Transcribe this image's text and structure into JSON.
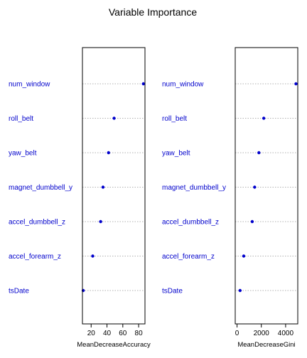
{
  "chart_data": {
    "type": "scatter",
    "title": "Variable Importance",
    "variables": [
      "num_window",
      "roll_belt",
      "yaw_belt",
      "magnet_dumbbell_y",
      "accel_dumbbell_z",
      "accel_forearm_z",
      "tsDate"
    ],
    "panels": [
      {
        "xlabel": "MeanDecreaseAccuracy",
        "xlim": [
          9,
          88
        ],
        "ticks": [
          20,
          40,
          60,
          80
        ],
        "values": [
          86,
          49,
          42,
          35,
          32,
          22,
          10
        ],
        "grid": "dotted horizontal guides"
      },
      {
        "xlabel": "MeanDecreaseGini",
        "xlim": [
          -150,
          5000
        ],
        "ticks": [
          0,
          2000,
          4000
        ],
        "values": [
          4850,
          2200,
          1800,
          1450,
          1250,
          550,
          250
        ],
        "grid": "dotted horizontal guides"
      }
    ],
    "colors": {
      "point": "#0000cc",
      "label": "#0000cc",
      "guide": "#b0b0b0"
    }
  }
}
